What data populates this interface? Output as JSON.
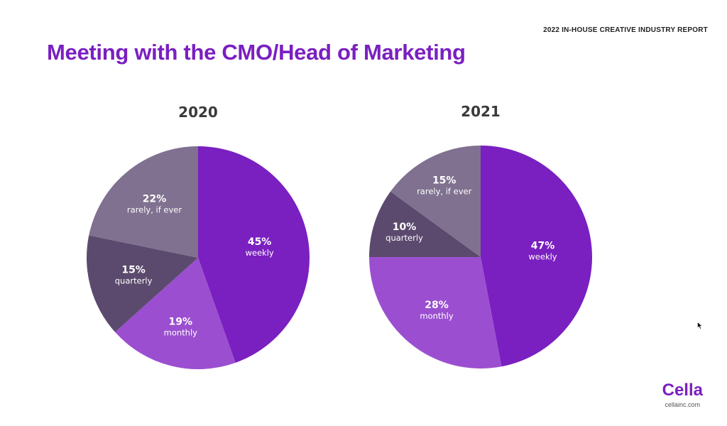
{
  "header": {
    "report_label": "2022 IN-HOUSE CREATIVE INDUSTRY REPORT",
    "title": "Meeting with the CMO/Head of Marketing"
  },
  "brand": {
    "logo_text": "Cella",
    "url": "cellainc.com"
  },
  "colors": {
    "accent": "#7a1fc0"
  },
  "chart_data": [
    {
      "type": "pie",
      "title": "2020",
      "slices": [
        {
          "label": "weekly",
          "value": 45,
          "display": "45%",
          "color": "#7a1fc0"
        },
        {
          "label": "monthly",
          "value": 19,
          "display": "19%",
          "color": "#9b4fd0"
        },
        {
          "label": "quarterly",
          "value": 15,
          "display": "15%",
          "color": "#5b4a6e"
        },
        {
          "label": "rarely, if ever",
          "value": 22,
          "display": "22%",
          "color": "#7f718f"
        }
      ]
    },
    {
      "type": "pie",
      "title": "2021",
      "slices": [
        {
          "label": "weekly",
          "value": 47,
          "display": "47%",
          "color": "#7a1fc0"
        },
        {
          "label": "monthly",
          "value": 28,
          "display": "28%",
          "color": "#9b4fd0"
        },
        {
          "label": "quarterly",
          "value": 10,
          "display": "10%",
          "color": "#5b4a6e"
        },
        {
          "label": "rarely, if ever",
          "value": 15,
          "display": "15%",
          "color": "#7f718f"
        }
      ]
    }
  ]
}
